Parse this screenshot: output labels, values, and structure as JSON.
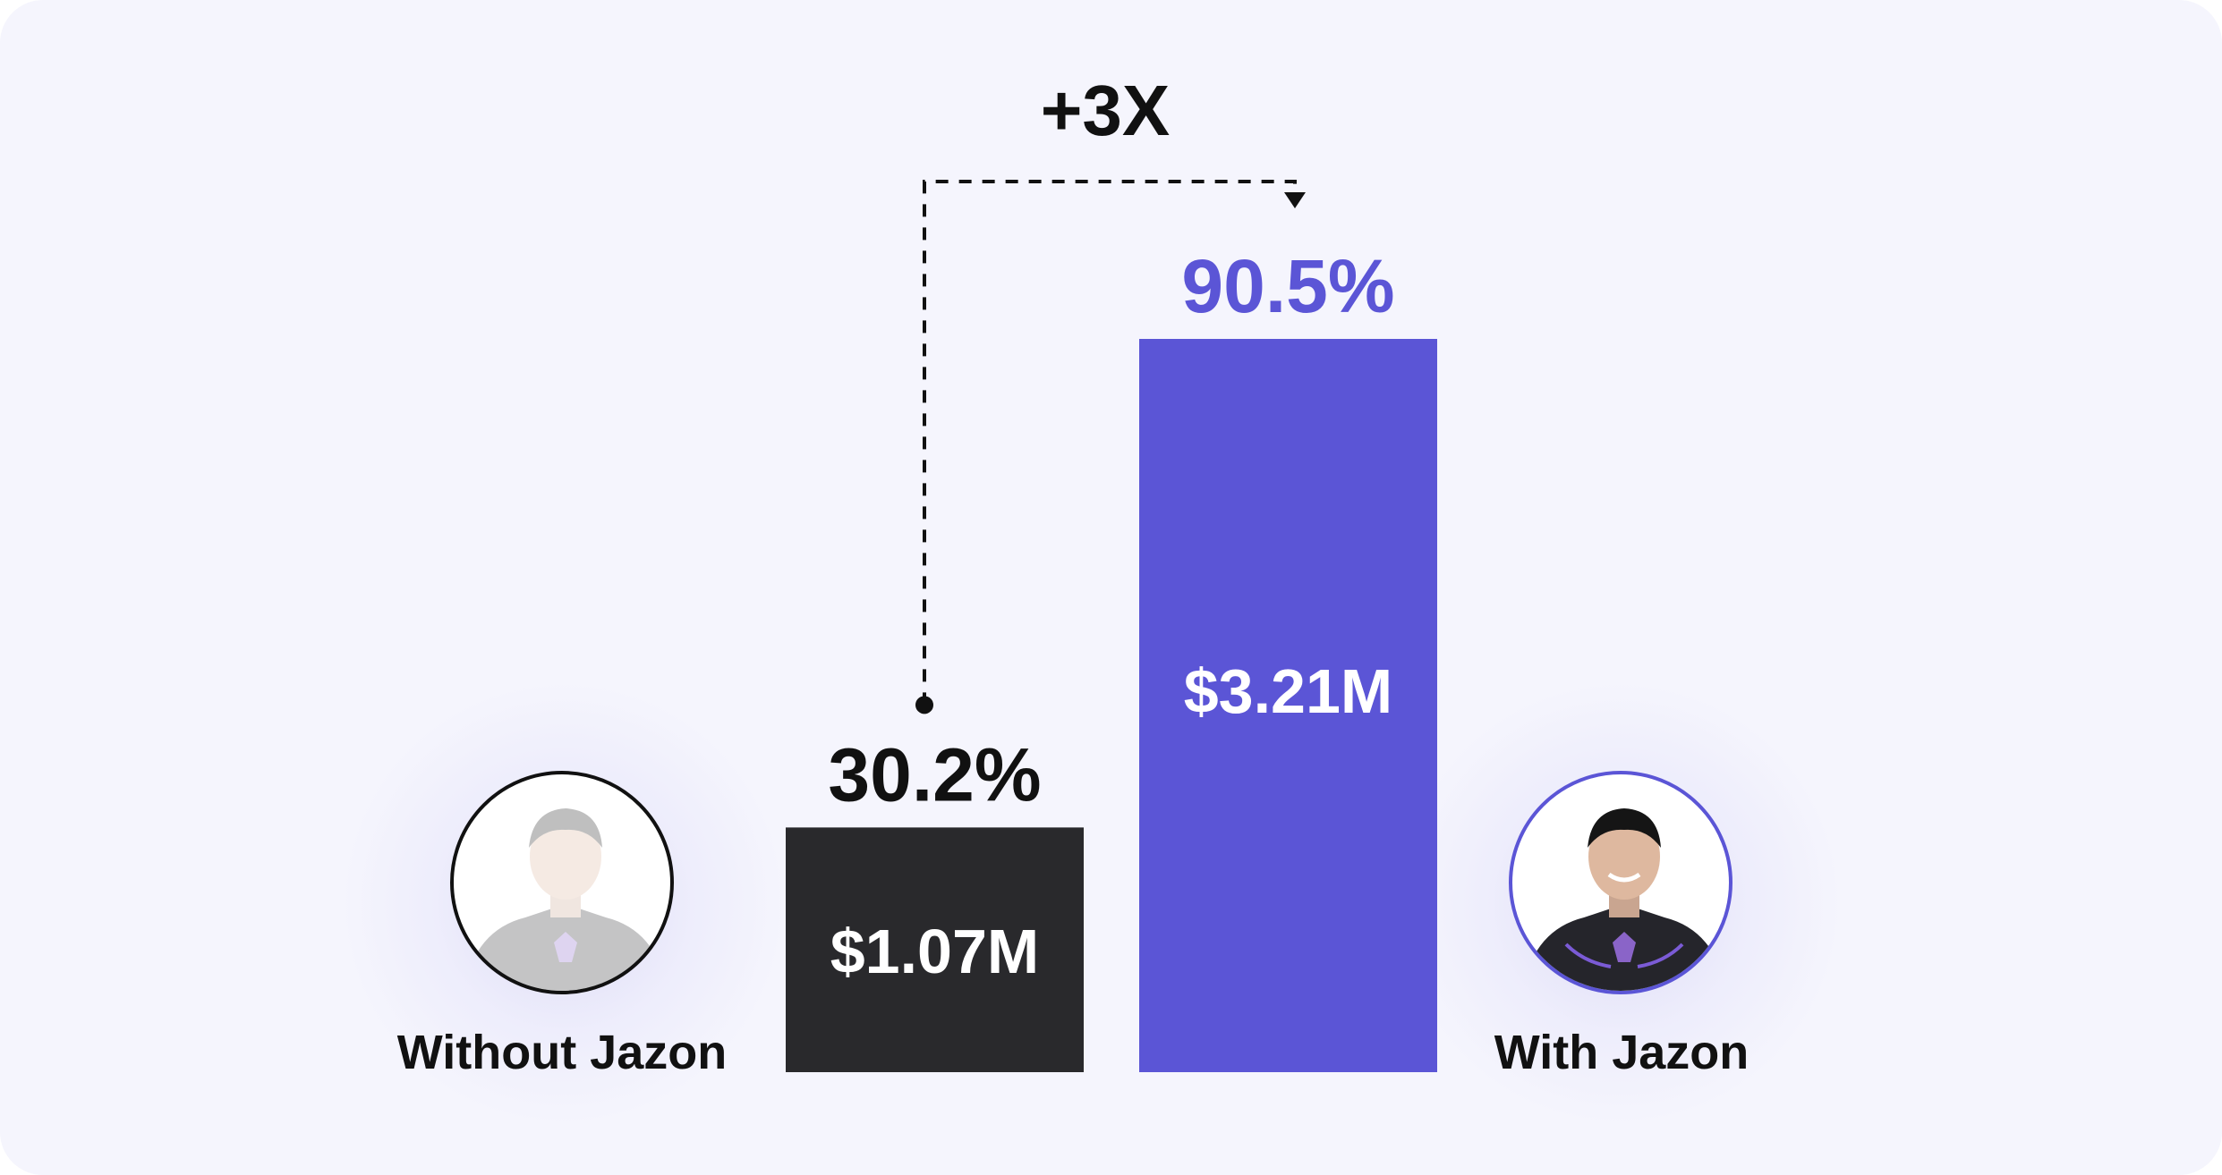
{
  "chart_data": {
    "type": "bar",
    "categories": [
      "Without Jazon",
      "With Jazon"
    ],
    "values": [
      30.2,
      90.5
    ],
    "value_labels": [
      "30.2%",
      "90.5%"
    ],
    "inner_labels": [
      "$1.07M",
      "$3.21M"
    ],
    "annotation": "+3X",
    "ylim": [
      0,
      100
    ],
    "grid": false,
    "colors": {
      "without": "#29292c",
      "with": "#5b55d6",
      "annotation": "#111111"
    }
  },
  "avatars": {
    "left": {
      "caption": "Without Jazon",
      "icon": "person-avatar-faded-icon"
    },
    "right": {
      "caption": "With Jazon",
      "icon": "person-avatar-icon"
    }
  }
}
